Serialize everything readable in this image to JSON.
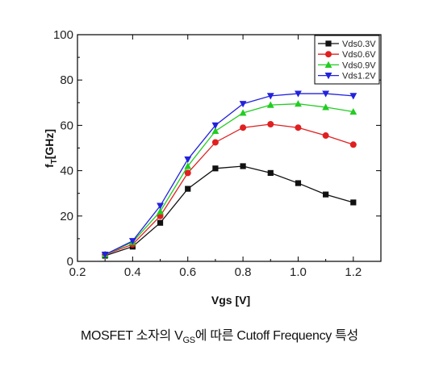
{
  "chart_data": {
    "type": "line",
    "title": "",
    "xlabel": "Vgs [V]",
    "ylabel_main": "f",
    "ylabel_sub": "T",
    "ylabel_unit": "[GHz]",
    "xlim": [
      0.2,
      1.3
    ],
    "ylim": [
      0,
      100
    ],
    "x_ticks": [
      0.2,
      0.4,
      0.6,
      0.8,
      1.0,
      1.2
    ],
    "x_tick_labels": [
      "0.2",
      "0.4",
      "0.6",
      "0.8",
      "1.0",
      "1.2"
    ],
    "y_ticks": [
      0,
      20,
      40,
      60,
      80,
      100
    ],
    "y_tick_labels": [
      "0",
      "20",
      "40",
      "60",
      "80",
      "100"
    ],
    "grid": false,
    "legend_position": "top-right",
    "x": [
      0.3,
      0.4,
      0.5,
      0.6,
      0.7,
      0.8,
      0.9,
      1.0,
      1.1,
      1.2
    ],
    "series": [
      {
        "name": "Vds0.3V",
        "color": "#111111",
        "marker": "square",
        "values": [
          2.5,
          6.5,
          17,
          32,
          41,
          42,
          39,
          34.5,
          29.5,
          26
        ]
      },
      {
        "name": "Vds0.6V",
        "color": "#e02020",
        "marker": "circle",
        "values": [
          3,
          7.5,
          20,
          39,
          52.5,
          59,
          60.5,
          59,
          55.5,
          51.5
        ]
      },
      {
        "name": "Vds0.9V",
        "color": "#22cc22",
        "marker": "triangle-up",
        "values": [
          3,
          8.5,
          22,
          42,
          57.5,
          65.5,
          69,
          69.5,
          68,
          66
        ]
      },
      {
        "name": "Vds1.2V",
        "color": "#2222dd",
        "marker": "triangle-down",
        "values": [
          3,
          9,
          24.5,
          45,
          60,
          69.5,
          73,
          74,
          74,
          73
        ]
      }
    ]
  },
  "caption": {
    "before": "MOSFET 소자의 V",
    "sub": "GS",
    "after": "에 따른 Cutoff Frequency 특성"
  }
}
